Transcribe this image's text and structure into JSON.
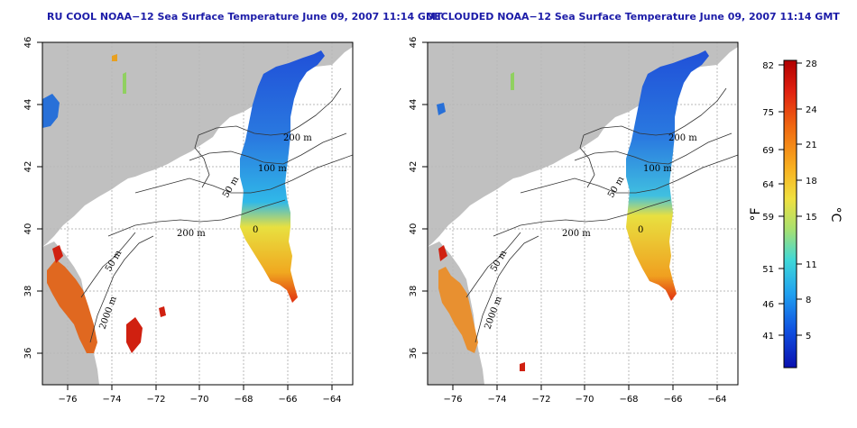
{
  "titles": {
    "left": "RU COOL NOAA−12 Sea Surface Temperature June 09, 2007 11:14 GMT",
    "right": "DECLOUDED NOAA−12 Sea Surface Temperature June 09, 2007 11:14 GMT"
  },
  "axes": {
    "lon_ticks": [
      "−76",
      "−74",
      "−72",
      "−70",
      "−68",
      "−66",
      "−64"
    ],
    "lat_ticks": [
      "46",
      "44",
      "42",
      "40",
      "38",
      "36"
    ]
  },
  "contour_labels": {
    "left": [
      "200 m",
      "100 m",
      "50 m",
      "200 m",
      "50 m",
      "2000 m",
      "0"
    ],
    "right": [
      "200 m",
      "100 m",
      "50 m",
      "200 m",
      "50 m",
      "2000 m",
      "0"
    ]
  },
  "colorbar": {
    "unit_f": "°F",
    "unit_c": "°C",
    "fahrenheit_ticks": [
      "82",
      "75",
      "69",
      "64",
      "59",
      "51",
      "46",
      "41"
    ],
    "celsius_ticks": [
      "28",
      "24",
      "21",
      "18",
      "15",
      "11",
      "8",
      "5"
    ],
    "scale_colors": [
      "#b00000",
      "#e02010",
      "#f06a10",
      "#f8b020",
      "#f0e040",
      "#a8e070",
      "#40d8d8",
      "#20a0f0",
      "#1050e0",
      "#0a10b0"
    ]
  },
  "colors": {
    "land": "#c0c0c0",
    "title_text": "#1c1ca8"
  }
}
